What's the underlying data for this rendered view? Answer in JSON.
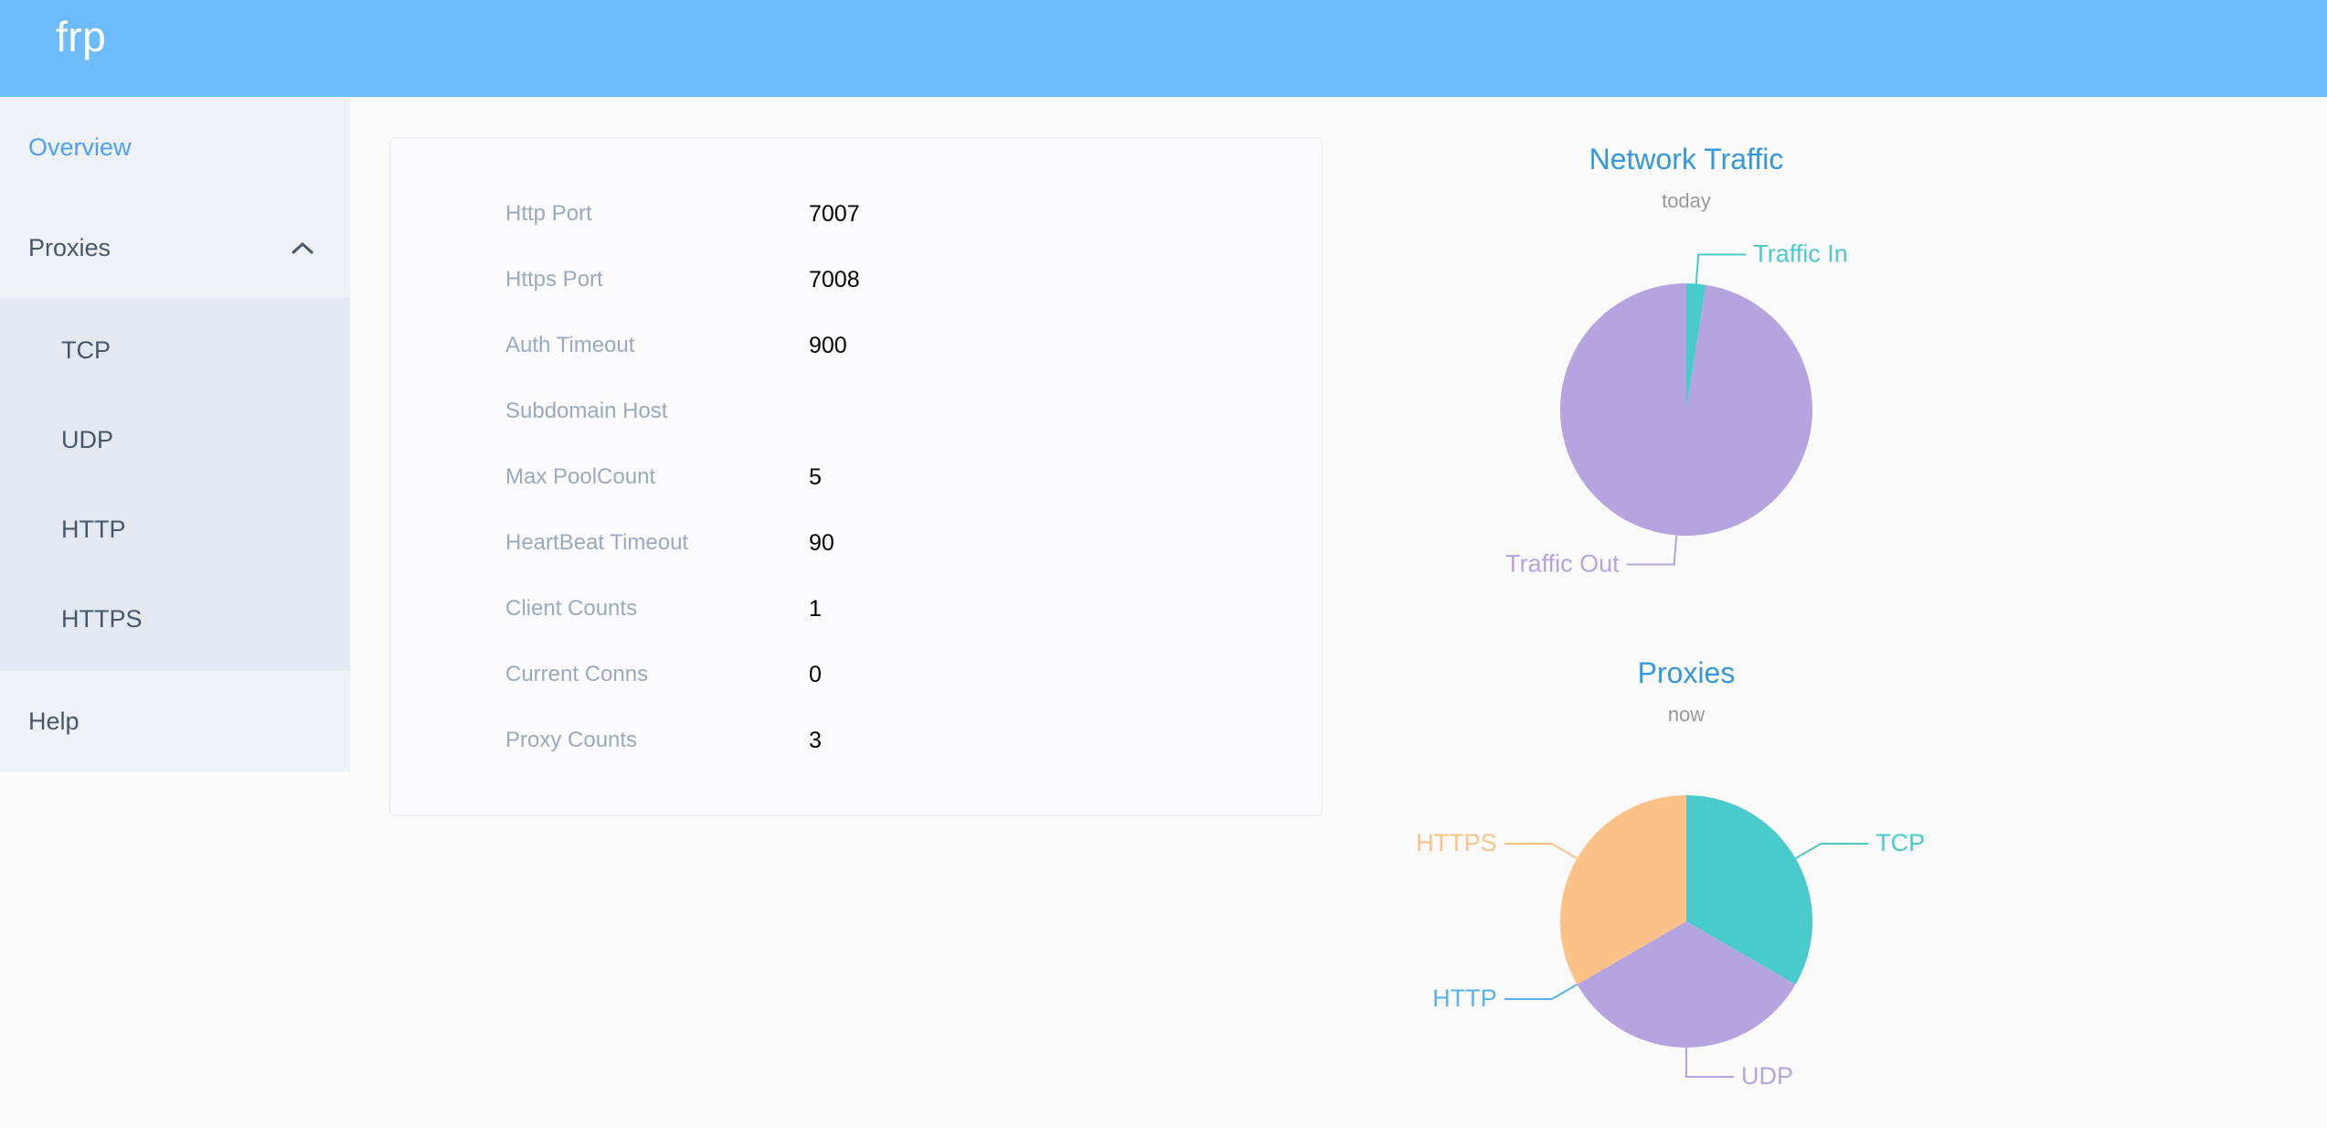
{
  "header": {
    "logo": "frp"
  },
  "sidebar": {
    "items": [
      {
        "label": "Overview",
        "active": true
      },
      {
        "label": "Proxies",
        "expanded": true,
        "children": [
          {
            "label": "TCP"
          },
          {
            "label": "UDP"
          },
          {
            "label": "HTTP"
          },
          {
            "label": "HTTPS"
          }
        ]
      },
      {
        "label": "Help",
        "active": false
      }
    ]
  },
  "overview_card": {
    "rows": [
      {
        "label": "Http Port",
        "value": "7007"
      },
      {
        "label": "Https Port",
        "value": "7008"
      },
      {
        "label": "Auth Timeout",
        "value": "900"
      },
      {
        "label": "Subdomain Host",
        "value": ""
      },
      {
        "label": "Max PoolCount",
        "value": "5"
      },
      {
        "label": "HeartBeat Timeout",
        "value": "90"
      },
      {
        "label": "Client Counts",
        "value": "1"
      },
      {
        "label": "Current Conns",
        "value": "0"
      },
      {
        "label": "Proxy Counts",
        "value": "3"
      }
    ]
  },
  "chart_data": [
    {
      "type": "pie",
      "title": "Network Traffic",
      "subtitle": "today",
      "unit": "percent_of_pie_estimated",
      "start_angle": "top",
      "clockwise": true,
      "labels": "outside-with-leader-lines",
      "legend_position": "none",
      "series": [
        {
          "name": "Traffic In",
          "value": 2.5,
          "color": "#49cbcc"
        },
        {
          "name": "Traffic Out",
          "value": 97.5,
          "color": "#b5a4df"
        }
      ]
    },
    {
      "type": "pie",
      "title": "Proxies",
      "subtitle": "now",
      "unit": "proxy_count",
      "start_angle": "top",
      "clockwise": true,
      "labels": "outside-with-leader-lines",
      "legend_position": "none",
      "series": [
        {
          "name": "TCP",
          "value": 1,
          "color": "#49cbcc"
        },
        {
          "name": "UDP",
          "value": 1,
          "color": "#b5a4df"
        },
        {
          "name": "HTTP",
          "value": 0,
          "color": "#5ab1ef"
        },
        {
          "name": "HTTPS",
          "value": 1,
          "color": "#fbc287"
        }
      ]
    }
  ],
  "colors": {
    "header_bg": "#6cbcfc",
    "logo_text": "#ffffff",
    "sidebar_bg": "#eef1f6",
    "submenu_bg": "#e4e8f1",
    "sidebar_text": "#48576a",
    "active_link": "#4ea0f9",
    "page_bg": "#fafafb",
    "card_border": "#e4e7f7",
    "card_bg": "#fcfcfe",
    "field_label": "#99a9bf",
    "field_value": "#000000",
    "chart_title": "#3398dc",
    "chart_subtitle": "#999999",
    "pie_teal": "#49cbcc",
    "pie_purple": "#b5a4df",
    "pie_blue": "#5ab1ef",
    "pie_orange": "#fbc287"
  }
}
